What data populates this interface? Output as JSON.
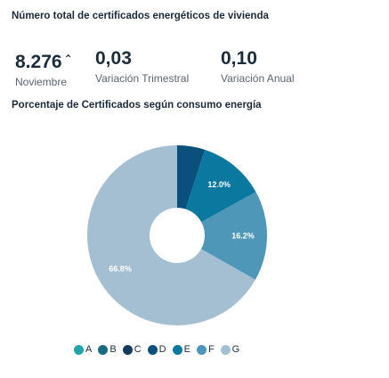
{
  "header": {
    "title": "Número total de certificados energéticos de vivienda"
  },
  "kpis": [
    {
      "value": "8.276",
      "trend": "⌃",
      "label": "Noviembre"
    },
    {
      "value": "0,03",
      "label": "Variación Trimestral"
    },
    {
      "value": "0,10",
      "label": "Variación Anual"
    }
  ],
  "chart_data": {
    "type": "pie",
    "title": "Porcentaje de Certificados según consumo energía",
    "categories": [
      "A",
      "B",
      "C",
      "D",
      "E",
      "F",
      "G"
    ],
    "values": [
      0.0,
      0.0,
      0.0,
      5.0,
      12.0,
      16.2,
      66.8
    ],
    "data_labels": [
      "",
      "",
      "",
      "",
      "12.0%",
      "16.2%",
      "66.8%"
    ],
    "colors": [
      "#21a3a8",
      "#1a6a84",
      "#163a5b",
      "#0b4f7c",
      "#0b78a0",
      "#4f97b9",
      "#a3bfd1"
    ],
    "donut": true,
    "legend_position": "bottom"
  }
}
